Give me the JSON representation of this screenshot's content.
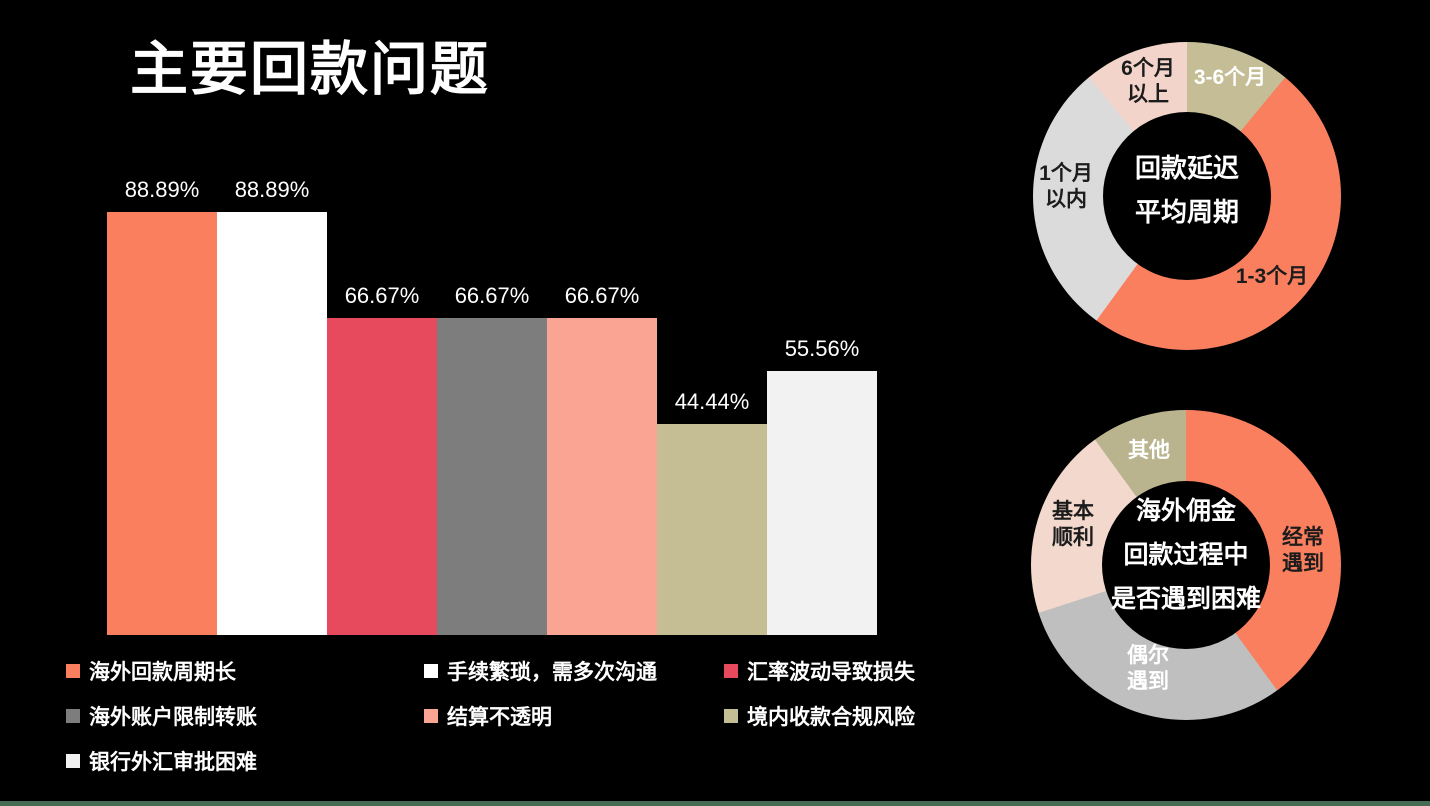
{
  "slide": {
    "title": "主要回款问题",
    "colors": {
      "background": "#000000",
      "footer_bar": "#476B50",
      "text_light": "#FFFFFF",
      "text_dark": "#1C1C1C"
    }
  },
  "chart_data": [
    {
      "id": "bar-payment-problems",
      "type": "bar",
      "title": "主要回款问题",
      "ylabel": "",
      "xlabel": "",
      "ylim": [
        0,
        100
      ],
      "grid": false,
      "legend_position": "bottom",
      "bars": [
        {
          "label": "海外回款周期长",
          "value": 88.89,
          "value_label": "88.89%",
          "color": "#FA7F5F"
        },
        {
          "label": "手续繁琐，需多次沟通",
          "value": 88.89,
          "value_label": "88.89%",
          "color": "#FFFFFF"
        },
        {
          "label": "汇率波动导致损失",
          "value": 66.67,
          "value_label": "66.67%",
          "color": "#E84A5D"
        },
        {
          "label": "海外账户限制转账",
          "value": 66.67,
          "value_label": "66.67%",
          "color": "#7D7D7D"
        },
        {
          "label": "结算不透明",
          "value": 66.67,
          "value_label": "66.67%",
          "color": "#FAA494"
        },
        {
          "label": "境内收款合规风险",
          "value": 44.44,
          "value_label": "44.44%",
          "color": "#C5BE94"
        },
        {
          "label": "银行外汇审批困难",
          "value": 55.56,
          "value_label": "55.56%",
          "color": "#F2F2F2"
        }
      ]
    },
    {
      "id": "donut-delay-cycle",
      "type": "donut",
      "center_label_lines": [
        "回款延迟",
        "平均周期"
      ],
      "start_angle_deg": 0,
      "values_estimated_from_pixels": true,
      "segments": [
        {
          "label": "3-6个月",
          "label_lines": [
            "3-6个月"
          ],
          "value": 11,
          "color": "#C4BD96",
          "label_color": "#FFFFFF"
        },
        {
          "label": "1-3个月",
          "label_lines": [
            "1-3个月"
          ],
          "value": 49,
          "color": "#FA7F5F",
          "label_color": "#1C1C1C"
        },
        {
          "label": "1个月以内",
          "label_lines": [
            "1个月",
            "以内"
          ],
          "value": 29,
          "color": "#DBDBDB",
          "label_color": "#1C1C1C"
        },
        {
          "label": "6个月以上",
          "label_lines": [
            "6个月",
            "以上"
          ],
          "value": 11,
          "color": "#F2D4CA",
          "label_color": "#1C1C1C"
        }
      ]
    },
    {
      "id": "donut-difficulty",
      "type": "donut",
      "center_label_lines": [
        "海外佣金",
        "回款过程中",
        "是否遇到困难"
      ],
      "start_angle_deg": 0,
      "values_estimated_from_pixels": true,
      "segments": [
        {
          "label": "经常遇到",
          "label_lines": [
            "经常",
            "遇到"
          ],
          "value": 40,
          "color": "#FA7F5F",
          "label_color": "#1C1C1C"
        },
        {
          "label": "偶尔遇到",
          "label_lines": [
            "偶尔",
            "遇到"
          ],
          "value": 30,
          "color": "#BFBFBF",
          "label_color": "#FFFFFF"
        },
        {
          "label": "基本顺利",
          "label_lines": [
            "基本",
            "顺利"
          ],
          "value": 20,
          "color": "#F3D9CD",
          "label_color": "#1C1C1C"
        },
        {
          "label": "其他",
          "label_lines": [
            "其他"
          ],
          "value": 10,
          "color": "#B9B48E",
          "label_color": "#FFFFFF"
        }
      ]
    }
  ]
}
